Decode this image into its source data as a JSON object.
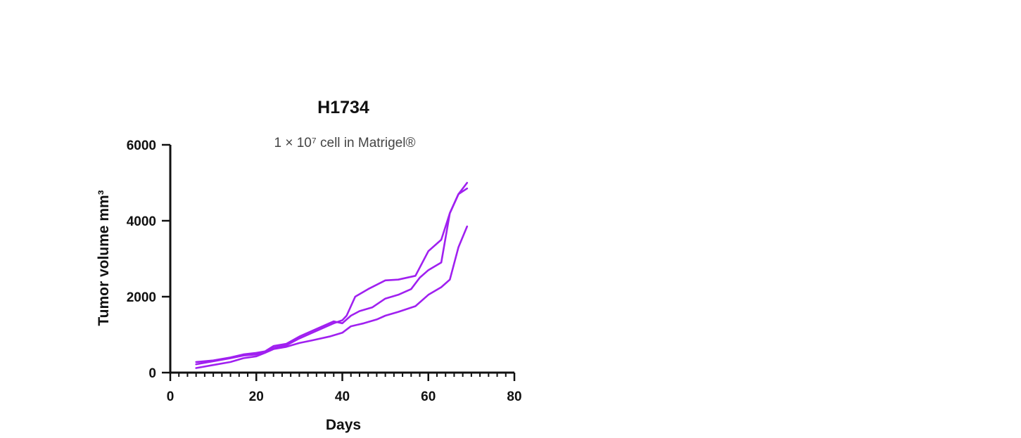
{
  "chart_data": {
    "type": "line",
    "title": "H1734",
    "subtitle": "1 × 10⁷ cell in Matrigel®",
    "xlabel": "Days",
    "ylabel": "Tumor volume mm³",
    "xlim": [
      0,
      80
    ],
    "ylim": [
      0,
      6000
    ],
    "x_ticks": [
      "0",
      "20",
      "40",
      "60",
      "80"
    ],
    "y_ticks": [
      "0",
      "2000",
      "4000",
      "6000"
    ],
    "grid": false,
    "legend": "none",
    "color": "#a020f0",
    "series": [
      {
        "x": [
          6,
          10,
          14,
          17,
          20,
          22,
          24,
          27,
          30,
          33,
          36,
          38,
          40,
          42,
          44,
          47,
          50,
          53,
          56,
          58,
          60,
          63,
          65,
          67,
          69
        ],
        "y": [
          280,
          320,
          400,
          480,
          520,
          560,
          700,
          760,
          950,
          1100,
          1250,
          1350,
          1300,
          1500,
          1620,
          1720,
          1950,
          2050,
          2200,
          2500,
          2700,
          2900,
          4200,
          4700,
          4850
        ]
      },
      {
        "x": [
          6,
          10,
          14,
          17,
          20,
          22,
          24,
          27,
          30,
          33,
          36,
          38,
          40,
          41,
          43,
          46,
          50,
          53,
          57,
          60,
          63,
          65,
          67,
          69
        ],
        "y": [
          220,
          300,
          380,
          450,
          480,
          530,
          650,
          720,
          900,
          1050,
          1200,
          1300,
          1380,
          1500,
          2000,
          2200,
          2430,
          2450,
          2550,
          3200,
          3500,
          4200,
          4700,
          5000
        ]
      },
      {
        "x": [
          6,
          10,
          14,
          17,
          20,
          22,
          24,
          27,
          30,
          33,
          37,
          40,
          42,
          45,
          48,
          50,
          53,
          57,
          60,
          63,
          65,
          67,
          69
        ],
        "y": [
          120,
          200,
          280,
          380,
          430,
          520,
          620,
          680,
          780,
          850,
          950,
          1050,
          1220,
          1300,
          1400,
          1500,
          1600,
          1750,
          2050,
          2250,
          2450,
          3300,
          3850
        ]
      }
    ]
  }
}
